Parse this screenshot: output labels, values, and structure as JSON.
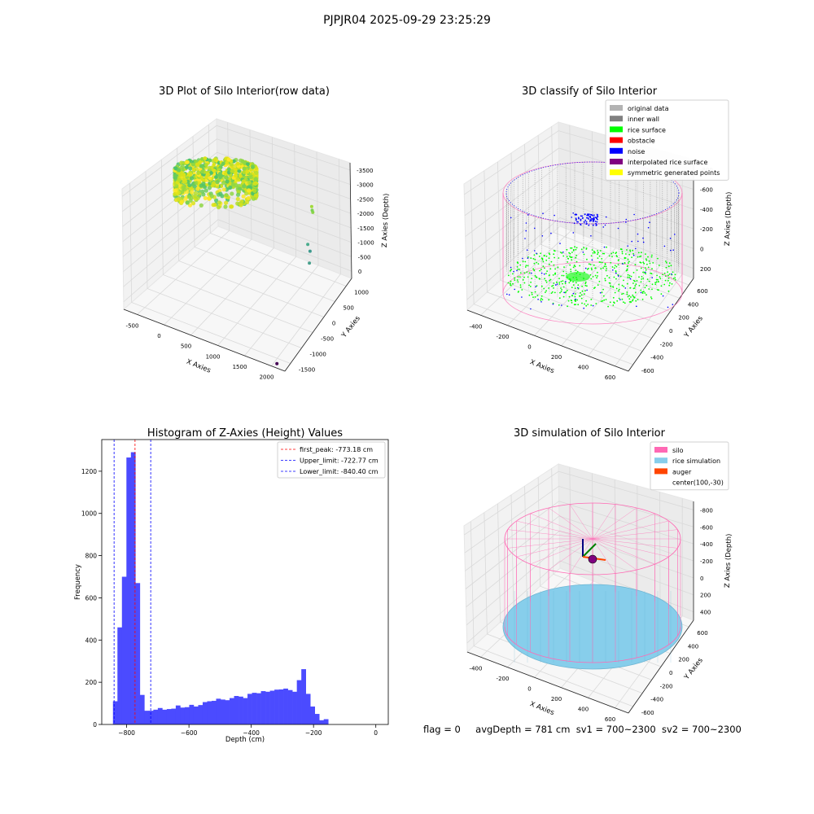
{
  "figure": {
    "suptitle": "PJPJR04 2025-09-29 23:25:29",
    "status": {
      "flag": "flag = 0",
      "avg": "avgDepth = 781 cm",
      "sv1": "sv1 = 700~2300",
      "sv2": "sv2 = 700~2300"
    }
  },
  "colors": {
    "hist_bar": "#4b4bff",
    "first_peak_line": "#ff0000",
    "limit_line": "#0000ff",
    "original_data": "#b3b3b3",
    "inner_wall": "#808080",
    "rice_surface": "#00ff00",
    "obstacle": "#ff0000",
    "noise": "#0000ff",
    "interpolated_rice_surface": "#800080",
    "symmetric_generated_points": "#ffff00",
    "silo": "#ff69b4",
    "rice_simulation": "#87ceeb",
    "auger": "#ff4500"
  },
  "chart_data": [
    {
      "type": "scatter",
      "projection": "3d",
      "title": "3D Plot of Silo Interior(row data)",
      "xlabel": "X Axies",
      "ylabel": "Y Axies",
      "zlabel": "Z Axies (Depth)",
      "xticks": [
        "-500",
        "0",
        "500",
        "1000",
        "1500",
        "2000"
      ],
      "yticks": [
        "-1500",
        "-1000",
        "-500",
        "0",
        "500",
        "1000"
      ],
      "zticks": [
        "0",
        "-500",
        "-1000",
        "-1500",
        "-2000",
        "-2500",
        "-3000",
        "-3500"
      ],
      "xlim": [
        -600,
        2200
      ],
      "ylim": [
        -1500,
        1200
      ],
      "zlim": [
        -3700,
        200
      ],
      "colormap": "viridis",
      "outliers": [
        {
          "x": 1450,
          "y": 500,
          "z": -900
        },
        {
          "x": 1500,
          "y": 450,
          "z": -1000
        },
        {
          "x": 1550,
          "y": 350,
          "z": -800
        },
        {
          "x": 1200,
          "y": 800,
          "z": -2600
        },
        {
          "x": 1300,
          "y": 700,
          "z": -2650
        },
        {
          "x": 1350,
          "y": 600,
          "z": -2900
        },
        {
          "x": 2000,
          "y": -1400,
          "z": -3700
        }
      ]
    },
    {
      "type": "scatter",
      "projection": "3d",
      "title": "3D classify of Silo Interior",
      "xlabel": "X Axies",
      "ylabel": "Y Axies",
      "zlabel": "Z Axies (Depth)",
      "xticks": [
        "-400",
        "-200",
        "0",
        "200",
        "400",
        "600"
      ],
      "yticks": [
        "-600",
        "-400",
        "-200",
        "0",
        "200",
        "400",
        "600"
      ],
      "zticks": [
        "200",
        "0",
        "-200",
        "-400",
        "-600",
        "-800"
      ],
      "xlim": [
        -500,
        700
      ],
      "ylim": [
        -700,
        700
      ],
      "zlim": [
        -900,
        300
      ],
      "legend": {
        "location": "upper right",
        "entries": [
          {
            "label": "original data",
            "color": "#b3b3b3"
          },
          {
            "label": "inner wall",
            "color": "#808080"
          },
          {
            "label": "rice surface",
            "color": "#00ff00"
          },
          {
            "label": "obstacle",
            "color": "#ff0000"
          },
          {
            "label": "noise",
            "color": "#0000ff"
          },
          {
            "label": "interpolated rice surface",
            "color": "#800080"
          },
          {
            "label": "symmetric generated points",
            "color": "#ffff00"
          }
        ]
      }
    },
    {
      "type": "bar",
      "subtype": "histogram",
      "title": "Histogram of Z-Axies (Height) Values",
      "xlabel": "Depth (cm)",
      "ylabel": "Frequency",
      "xlim": [
        -880,
        40
      ],
      "ylim": [
        0,
        1350
      ],
      "xticks": [
        -800,
        -600,
        -400,
        -200,
        0
      ],
      "yticks": [
        0,
        200,
        400,
        600,
        800,
        1000,
        1200
      ],
      "bin_start": -844,
      "bin_width": 14.4,
      "counts": [
        110,
        460,
        700,
        1265,
        1290,
        670,
        140,
        65,
        65,
        70,
        78,
        70,
        73,
        75,
        90,
        80,
        82,
        93,
        85,
        92,
        106,
        110,
        112,
        122,
        118,
        115,
        125,
        135,
        132,
        125,
        145,
        150,
        148,
        158,
        155,
        160,
        165,
        166,
        170,
        163,
        155,
        210,
        262,
        145,
        85,
        50,
        20,
        25
      ],
      "vlines": [
        {
          "label": "first_peak: -773.18 cm",
          "x": -773.18,
          "color": "#ff0000"
        },
        {
          "label": "Upper_limit: -722.77 cm",
          "x": -722.77,
          "color": "#0000ff"
        },
        {
          "label": "Lower_limit: -840.40 cm",
          "x": -840.4,
          "color": "#0000ff"
        }
      ],
      "legend": {
        "location": "upper right"
      }
    },
    {
      "type": "scatter",
      "projection": "3d",
      "title": "3D simulation of Silo Interior",
      "xlabel": "X Axies",
      "ylabel": "Y Axies",
      "zlabel": "Z Axies (Depth)",
      "xticks": [
        "-400",
        "-200",
        "0",
        "200",
        "400",
        "600"
      ],
      "yticks": [
        "-600",
        "-400",
        "-200",
        "0",
        "200",
        "400",
        "600"
      ],
      "zticks": [
        "400",
        "200",
        "0",
        "-200",
        "-400",
        "-600",
        "-800"
      ],
      "xlim": [
        -500,
        700
      ],
      "ylim": [
        -700,
        700
      ],
      "zlim": [
        -900,
        500
      ],
      "legend": {
        "location": "upper right",
        "entries": [
          {
            "label": "silo",
            "color": "#ff69b4"
          },
          {
            "label": "rice simulation",
            "color": "#87ceeb"
          },
          {
            "label": "auger",
            "color": "#ff4500"
          },
          {
            "label": "center(100,-30)",
            "color": ""
          }
        ]
      }
    }
  ]
}
